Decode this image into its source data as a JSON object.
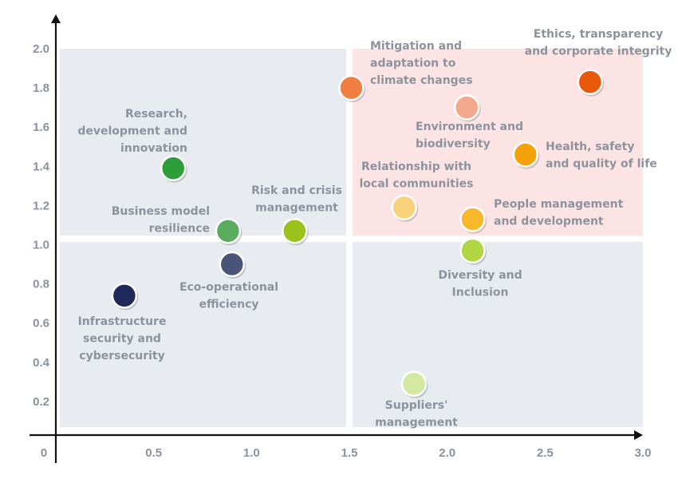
{
  "chart_data": {
    "type": "scatter",
    "title": "",
    "xlabel": "",
    "ylabel": "",
    "xlim": [
      0,
      3.0
    ],
    "ylim": [
      0,
      2.0
    ],
    "x_ticks": [
      {
        "value": 0,
        "label": "0"
      },
      {
        "value": 0.5,
        "label": "0.5"
      },
      {
        "value": 1.0,
        "label": "1.0"
      },
      {
        "value": 1.5,
        "label": "1.5"
      },
      {
        "value": 2.0,
        "label": "2.0"
      },
      {
        "value": 2.5,
        "label": "2.5"
      },
      {
        "value": 3.0,
        "label": "3.0"
      }
    ],
    "y_ticks": [
      {
        "value": 0.2,
        "label": "0.2"
      },
      {
        "value": 0.4,
        "label": "0.4"
      },
      {
        "value": 0.6,
        "label": "0.6"
      },
      {
        "value": 0.8,
        "label": "0.8"
      },
      {
        "value": 1.0,
        "label": "1.0"
      },
      {
        "value": 1.2,
        "label": "1.2"
      },
      {
        "value": 1.4,
        "label": "1.4"
      },
      {
        "value": 1.6,
        "label": "1.6"
      },
      {
        "value": 1.8,
        "label": "1.8"
      },
      {
        "value": 2.0,
        "label": "2.0"
      }
    ],
    "quadrant_split": {
      "x": 1.5,
      "y": 1.03
    },
    "quadrant_colors": {
      "top_left": "#e8ecf1",
      "top_right": "#fde4e4",
      "bottom_left": "#e8ecf1",
      "bottom_right": "#e8ecf1"
    },
    "points": [
      {
        "id": "ethics",
        "label": [
          "Ethics, transparency",
          "and corporate integrity"
        ],
        "x": 2.73,
        "y": 1.83,
        "color": "#e8590c",
        "label_anchor": "middle"
      },
      {
        "id": "mitigation",
        "label": [
          "Mitigation and",
          "adaptation to",
          "climate changes"
        ],
        "x": 1.51,
        "y": 1.8,
        "color": "#f07d41",
        "label_anchor": "start"
      },
      {
        "id": "environment",
        "label": [
          "Environment and",
          "biodiversity"
        ],
        "x": 2.1,
        "y": 1.7,
        "color": "#f4a98c",
        "label_anchor": "start"
      },
      {
        "id": "health",
        "label": [
          "Health, safety",
          "and quality of life"
        ],
        "x": 2.4,
        "y": 1.46,
        "color": "#f5a20a",
        "label_anchor": "start"
      },
      {
        "id": "research",
        "label": [
          "Research,",
          "development and",
          "innovation"
        ],
        "x": 0.6,
        "y": 1.39,
        "color": "#2e9e3a",
        "label_anchor": "end"
      },
      {
        "id": "communities",
        "label": [
          "Relationship with",
          "local communities"
        ],
        "x": 1.78,
        "y": 1.19,
        "color": "#fbd27c",
        "label_anchor": "middle"
      },
      {
        "id": "people",
        "label": [
          "People management",
          "and development"
        ],
        "x": 2.13,
        "y": 1.13,
        "color": "#f9b82a",
        "label_anchor": "start"
      },
      {
        "id": "risk",
        "label": [
          "Risk and crisis",
          "management"
        ],
        "x": 1.22,
        "y": 1.07,
        "color": "#99c21c",
        "label_anchor": "middle"
      },
      {
        "id": "business",
        "label": [
          "Business model",
          "resilience"
        ],
        "x": 0.88,
        "y": 1.07,
        "color": "#5aac5e",
        "label_anchor": "end"
      },
      {
        "id": "diversity",
        "label": [
          "Diversity and",
          "Inclusion"
        ],
        "x": 2.13,
        "y": 0.97,
        "color": "#b2d544",
        "label_anchor": "middle"
      },
      {
        "id": "eco",
        "label": [
          "Eco-operational",
          "efficiency"
        ],
        "x": 0.9,
        "y": 0.9,
        "color": "#4a5478",
        "label_anchor": "middle"
      },
      {
        "id": "infrastructure",
        "label": [
          "Infrastructure",
          "security and",
          "cybersecurity"
        ],
        "x": 0.35,
        "y": 0.74,
        "color": "#1e2a5a",
        "label_anchor": "middle"
      },
      {
        "id": "suppliers",
        "label": [
          "Suppliers'",
          "management"
        ],
        "x": 1.83,
        "y": 0.29,
        "color": "#d3e8a0",
        "label_anchor": "middle"
      }
    ]
  }
}
